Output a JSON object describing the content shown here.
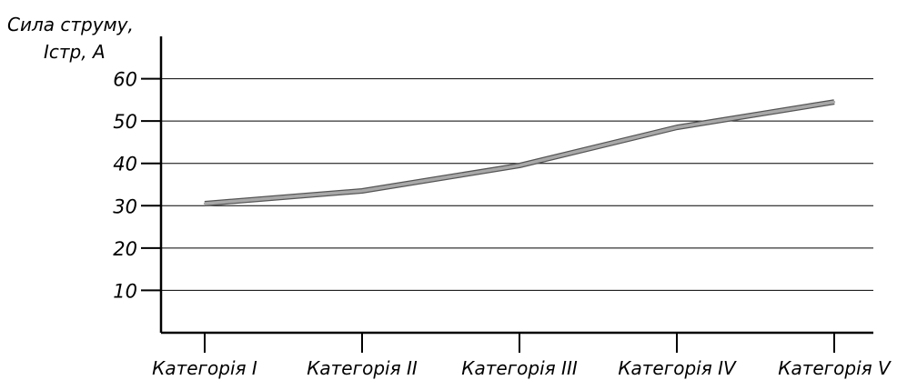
{
  "chart_data": {
    "type": "line",
    "title": "",
    "ylabel_line1": "Сила струму,",
    "ylabel_line2": "Iстр, А",
    "xlabel": "",
    "categories": [
      "Категорія I",
      "Категорія II",
      "Категорія III",
      "Категорія IV",
      "Категорія V"
    ],
    "series": [
      {
        "values": [
          30.5,
          33.5,
          39.5,
          48.5,
          54.5
        ]
      }
    ],
    "yticks": [
      10,
      20,
      30,
      40,
      50,
      60
    ],
    "ytick_labels": [
      "10",
      "20",
      "30",
      "40",
      "50",
      "60"
    ],
    "ylim": [
      0,
      70
    ],
    "grid": true,
    "line_color": "#a8a8a8",
    "line_outline_color": "#555555"
  }
}
